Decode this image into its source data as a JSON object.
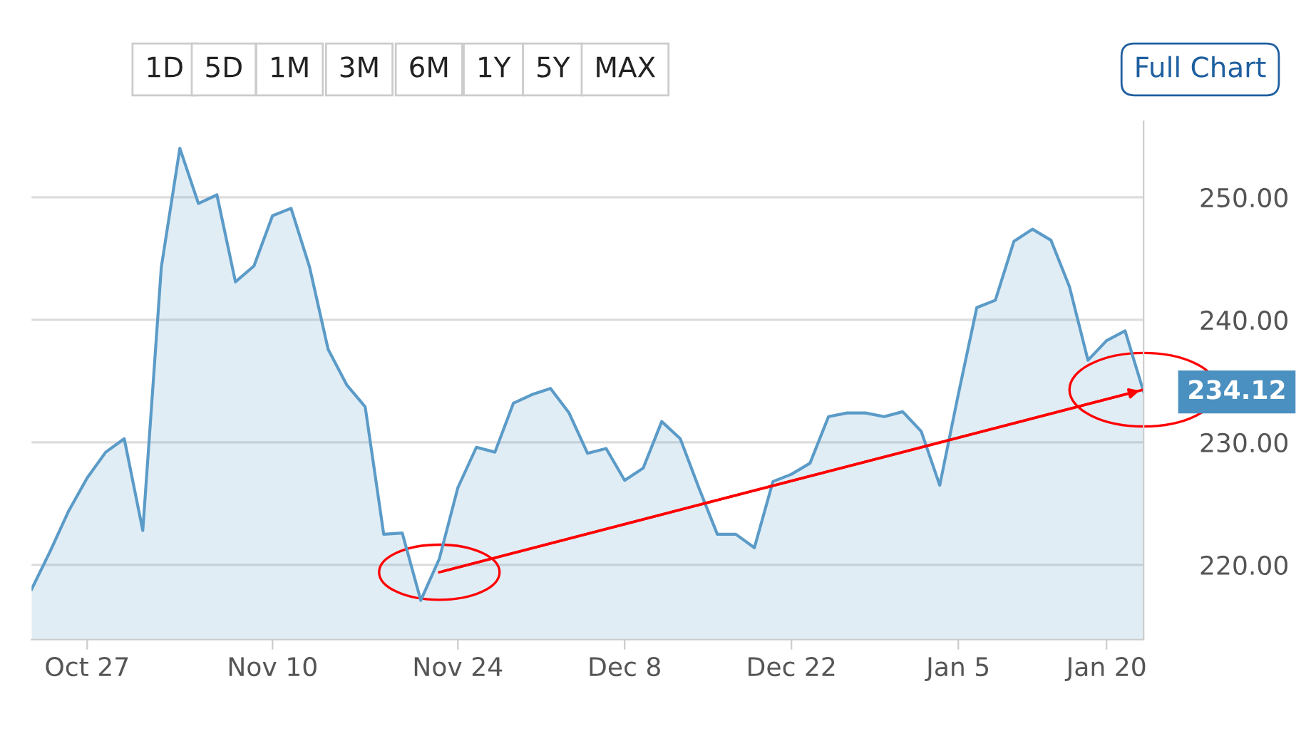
{
  "chart_data": {
    "type": "area",
    "categories": [
      null,
      null,
      null,
      "Oct 27",
      null,
      null,
      null,
      null,
      null,
      null,
      null,
      null,
      null,
      "Nov 10",
      null,
      null,
      null,
      null,
      null,
      null,
      null,
      null,
      null,
      "Nov 24",
      null,
      null,
      null,
      null,
      null,
      null,
      null,
      null,
      "Dec 8",
      null,
      null,
      null,
      null,
      null,
      null,
      null,
      null,
      "Dec 22",
      null,
      null,
      null,
      null,
      null,
      null,
      null,
      null,
      "Jan 5",
      null,
      null,
      null,
      null,
      null,
      null,
      null,
      "Jan 20",
      null,
      null
    ],
    "series": [
      {
        "color": "#5b9bc8",
        "values": [
          218.0,
          221.1,
          224.4,
          227.1,
          229.2,
          230.3,
          222.8,
          244.3,
          254.0,
          249.5,
          250.2,
          243.1,
          244.4,
          248.5,
          249.1,
          244.3,
          237.6,
          234.7,
          232.9,
          222.5,
          222.6,
          217.1,
          220.5,
          226.3,
          229.6,
          229.2,
          233.2,
          233.9,
          234.4,
          232.4,
          229.1,
          229.5,
          226.9,
          227.9,
          231.7,
          230.3,
          226.3,
          222.5,
          222.5,
          221.4,
          226.8,
          227.4,
          228.3,
          232.1,
          232.4,
          232.4,
          232.1,
          232.5,
          230.9,
          226.5,
          233.9,
          241.0,
          241.6,
          246.4,
          247.4,
          246.5,
          242.7,
          236.7,
          238.3,
          239.1,
          234.12
        ]
      },
      {
        "type": "line",
        "color": "#ff0000",
        "values": [
          null,
          null,
          null,
          null,
          null,
          null,
          null,
          null,
          null,
          null,
          null,
          null,
          null,
          null,
          null,
          null,
          null,
          null,
          null,
          null,
          null,
          null,
          219.4,
          null,
          null,
          null,
          null,
          null,
          null,
          null,
          null,
          null,
          null,
          null,
          null,
          null,
          null,
          null,
          null,
          null,
          null,
          null,
          null,
          null,
          null,
          null,
          null,
          null,
          null,
          null,
          null,
          null,
          null,
          null,
          null,
          null,
          null,
          null,
          null,
          null,
          234.3
        ]
      }
    ],
    "ylim": [
      213.9,
      256.2
    ],
    "yticks": [
      {
        "value": 220,
        "label": "220.00"
      },
      {
        "value": 230,
        "label": "230.00"
      },
      {
        "value": 240,
        "label": "240.00"
      },
      {
        "value": 250,
        "label": "250.00"
      }
    ],
    "grid": "y",
    "annotations": [
      "234.12",
      "1D",
      "5D",
      "1M",
      "3M",
      "6M",
      "1Y",
      "5Y",
      "MAX",
      "Full Chart"
    ]
  }
}
